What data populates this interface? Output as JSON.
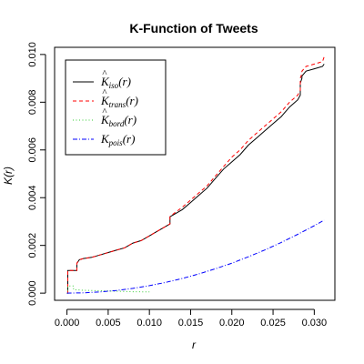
{
  "chart_data": {
    "type": "line",
    "title": "K-Function of Tweets",
    "xlabel": "r",
    "ylabel": "K(r)",
    "xlim": [
      -0.0015,
      0.0325
    ],
    "ylim": [
      -0.0003,
      0.0103
    ],
    "xticks": [
      "0.000",
      "0.005",
      "0.010",
      "0.015",
      "0.020",
      "0.025",
      "0.030"
    ],
    "yticks": [
      "0.000",
      "0.002",
      "0.004",
      "0.006",
      "0.008",
      "0.010"
    ],
    "legend_position": "top-left",
    "series": [
      {
        "name": "iso",
        "color": "#000000",
        "style": "solid",
        "x": [
          0.0,
          0.0001,
          0.0001,
          0.0012,
          0.0012,
          0.0015,
          0.002,
          0.003,
          0.004,
          0.005,
          0.006,
          0.007,
          0.008,
          0.009,
          0.01,
          0.011,
          0.012,
          0.0125,
          0.0125,
          0.013,
          0.014,
          0.015,
          0.016,
          0.017,
          0.018,
          0.019,
          0.02,
          0.021,
          0.022,
          0.023,
          0.024,
          0.025,
          0.026,
          0.027,
          0.028,
          0.0283,
          0.0283,
          0.0285,
          0.0285,
          0.029,
          0.03,
          0.031,
          0.0312
        ],
        "y": [
          0.0,
          0.0,
          0.00095,
          0.00095,
          0.00125,
          0.0014,
          0.00145,
          0.0015,
          0.0016,
          0.0017,
          0.0018,
          0.0019,
          0.0021,
          0.0022,
          0.0024,
          0.0026,
          0.0028,
          0.0029,
          0.0032,
          0.0033,
          0.0035,
          0.0038,
          0.0041,
          0.0044,
          0.0048,
          0.0052,
          0.0055,
          0.0058,
          0.0062,
          0.0065,
          0.0068,
          0.0071,
          0.0074,
          0.0078,
          0.0081,
          0.0083,
          0.0088,
          0.009,
          0.0091,
          0.0093,
          0.0094,
          0.0095,
          0.0096
        ]
      },
      {
        "name": "trans",
        "color": "#ff0000",
        "style": "dashed",
        "x": [
          0.0,
          0.0001,
          0.0001,
          0.0012,
          0.0012,
          0.0015,
          0.002,
          0.003,
          0.004,
          0.005,
          0.006,
          0.007,
          0.008,
          0.009,
          0.01,
          0.011,
          0.012,
          0.0125,
          0.0125,
          0.013,
          0.014,
          0.015,
          0.016,
          0.017,
          0.018,
          0.019,
          0.02,
          0.021,
          0.022,
          0.023,
          0.024,
          0.025,
          0.026,
          0.027,
          0.028,
          0.0283,
          0.0283,
          0.0285,
          0.0285,
          0.029,
          0.03,
          0.031,
          0.0312
        ],
        "y": [
          0.0,
          0.0,
          0.00095,
          0.00095,
          0.00125,
          0.0014,
          0.00145,
          0.0015,
          0.0016,
          0.0017,
          0.0018,
          0.0019,
          0.0021,
          0.0022,
          0.0024,
          0.0026,
          0.0028,
          0.0029,
          0.0032,
          0.00335,
          0.0036,
          0.0039,
          0.0042,
          0.0045,
          0.0049,
          0.0053,
          0.0057,
          0.006,
          0.0064,
          0.0067,
          0.007,
          0.0073,
          0.0076,
          0.008,
          0.0083,
          0.0085,
          0.009,
          0.0092,
          0.0093,
          0.0095,
          0.0096,
          0.0097,
          0.0099
        ]
      },
      {
        "name": "bord",
        "color": "#33cc33",
        "style": "dotted",
        "x": [
          0.0,
          0.0001,
          0.0001,
          0.0008,
          0.0008,
          0.002,
          0.004,
          0.006,
          0.008,
          0.01
        ],
        "y": [
          0.0,
          0.0,
          0.0003,
          0.0003,
          0.00015,
          0.00012,
          0.0001,
          8e-05,
          6e-05,
          5e-05
        ]
      },
      {
        "name": "pois",
        "color": "#0000ff",
        "style": "dashdot",
        "x": [
          0.0,
          0.002,
          0.004,
          0.006,
          0.008,
          0.01,
          0.012,
          0.014,
          0.016,
          0.018,
          0.02,
          0.022,
          0.024,
          0.026,
          0.028,
          0.03,
          0.0312
        ],
        "y": [
          0.0,
          1.26e-05,
          5.03e-05,
          0.000113,
          0.000201,
          0.000314,
          0.000452,
          0.000616,
          0.000804,
          0.001018,
          0.001257,
          0.001521,
          0.00181,
          0.002124,
          0.002463,
          0.002827,
          0.003058
        ]
      }
    ],
    "legend": [
      {
        "main": "K",
        "hat": "^",
        "sub": "iso",
        "tail": "(r)",
        "color": "#000000",
        "style": "solid"
      },
      {
        "main": "K",
        "hat": "^",
        "sub": "trans",
        "tail": "(r)",
        "color": "#ff0000",
        "style": "dashed"
      },
      {
        "main": "K",
        "hat": "^",
        "sub": "bord",
        "tail": "(r)",
        "color": "#33cc33",
        "style": "dotted"
      },
      {
        "main": "K",
        "hat": "",
        "sub": "pois",
        "tail": "(r)",
        "color": "#0000ff",
        "style": "dashdot"
      }
    ]
  }
}
